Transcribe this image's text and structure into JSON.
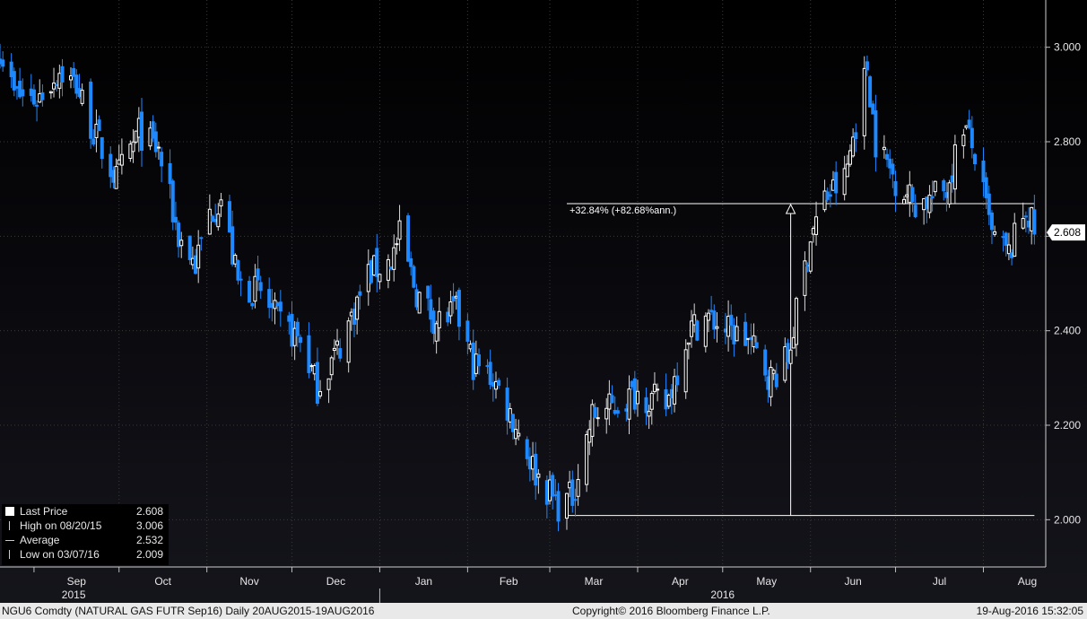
{
  "footer": {
    "security": "NGU6 Comdty (NATURAL GAS FUTR  Sep16)  Daily 20AUG2015-19AUG2016",
    "copyright": "Copyright© 2016 Bloomberg Finance L.P.",
    "timestamp": "19-Aug-2016 15:32:05"
  },
  "legend": {
    "rows": [
      {
        "label": "Last Price",
        "value": "2.608"
      },
      {
        "label": "High on 08/20/15",
        "value": "3.006"
      },
      {
        "label": "Average",
        "value": "2.532"
      },
      {
        "label": "Low on 03/07/16",
        "value": "2.009"
      }
    ]
  },
  "annotation": {
    "change_text": "+32.84% (+82.68%ann.)",
    "low_level": 2.009,
    "high_level": 2.669,
    "start_date": "2016-03-07",
    "arrow_date": "2016-05-25",
    "end_date": "2016-08-19"
  },
  "colors": {
    "up": "#ffffff",
    "down": "#1e88ff",
    "background": "#000000",
    "grid": "#3a3a3a"
  },
  "chart_data": {
    "type": "candlestick",
    "title": "",
    "xlabel": "",
    "ylabel": "",
    "ylim": [
      1.9,
      3.1
    ],
    "yticks": [
      "2.000",
      "2.200",
      "2.400",
      "2.600",
      "2.800",
      "3.000"
    ],
    "last_price_label": "2.608",
    "months": [
      {
        "label": "Sep",
        "date": "2015-09-01"
      },
      {
        "label": "Oct",
        "date": "2015-10-01"
      },
      {
        "label": "Nov",
        "date": "2015-11-01"
      },
      {
        "label": "Dec",
        "date": "2015-12-01"
      },
      {
        "label": "Jan",
        "date": "2016-01-01"
      },
      {
        "label": "Feb",
        "date": "2016-02-01"
      },
      {
        "label": "Mar",
        "date": "2016-03-01"
      },
      {
        "label": "Apr",
        "date": "2016-04-01"
      },
      {
        "label": "May",
        "date": "2016-05-01"
      },
      {
        "label": "Jun",
        "date": "2016-06-01"
      },
      {
        "label": "Jul",
        "date": "2016-07-01"
      },
      {
        "label": "Aug",
        "date": "2016-08-01"
      }
    ],
    "years": [
      {
        "label": "2015",
        "date": "2015-09-15"
      },
      {
        "label": "2016",
        "date": "2016-05-01"
      }
    ],
    "year_divider": "2016-01-01",
    "x_start": "2015-08-20",
    "x_end": "2016-08-23",
    "anchors": [
      [
        "2015-08-20",
        3.0
      ],
      [
        "2015-08-25",
        2.9
      ],
      [
        "2015-09-02",
        2.89
      ],
      [
        "2015-09-10",
        2.95
      ],
      [
        "2015-09-16",
        2.92
      ],
      [
        "2015-09-22",
        2.82
      ],
      [
        "2015-09-30",
        2.72
      ],
      [
        "2015-10-08",
        2.82
      ],
      [
        "2015-10-15",
        2.78
      ],
      [
        "2015-10-22",
        2.6
      ],
      [
        "2015-10-28",
        2.54
      ],
      [
        "2015-11-02",
        2.65
      ],
      [
        "2015-11-06",
        2.68
      ],
      [
        "2015-11-12",
        2.5
      ],
      [
        "2015-11-20",
        2.48
      ],
      [
        "2015-11-26",
        2.42
      ],
      [
        "2015-12-04",
        2.38
      ],
      [
        "2015-12-10",
        2.28
      ],
      [
        "2015-12-18",
        2.37
      ],
      [
        "2015-12-28",
        2.52
      ],
      [
        "2016-01-05",
        2.55
      ],
      [
        "2016-01-08",
        2.6
      ],
      [
        "2016-01-14",
        2.48
      ],
      [
        "2016-01-21",
        2.42
      ],
      [
        "2016-01-28",
        2.44
      ],
      [
        "2016-02-03",
        2.33
      ],
      [
        "2016-02-10",
        2.3
      ],
      [
        "2016-02-18",
        2.2
      ],
      [
        "2016-02-25",
        2.1
      ],
      [
        "2016-03-04",
        2.03
      ],
      [
        "2016-03-09",
        2.05
      ],
      [
        "2016-03-16",
        2.22
      ],
      [
        "2016-03-24",
        2.24
      ],
      [
        "2016-04-01",
        2.27
      ],
      [
        "2016-04-11",
        2.24
      ],
      [
        "2016-04-19",
        2.4
      ],
      [
        "2016-04-25",
        2.43
      ],
      [
        "2016-05-03",
        2.4
      ],
      [
        "2016-05-10",
        2.38
      ],
      [
        "2016-05-18",
        2.3
      ],
      [
        "2016-05-24",
        2.34
      ],
      [
        "2016-06-01",
        2.6
      ],
      [
        "2016-06-06",
        2.68
      ],
      [
        "2016-06-13",
        2.72
      ],
      [
        "2016-06-17",
        2.84
      ],
      [
        "2016-06-21",
        2.96
      ],
      [
        "2016-06-24",
        2.8
      ],
      [
        "2016-07-01",
        2.72
      ],
      [
        "2016-07-08",
        2.67
      ],
      [
        "2016-07-14",
        2.68
      ],
      [
        "2016-07-19",
        2.7
      ],
      [
        "2016-07-25",
        2.84
      ],
      [
        "2016-07-29",
        2.77
      ],
      [
        "2016-08-04",
        2.6
      ],
      [
        "2016-08-10",
        2.56
      ],
      [
        "2016-08-16",
        2.66
      ],
      [
        "2016-08-19",
        2.61
      ]
    ]
  }
}
